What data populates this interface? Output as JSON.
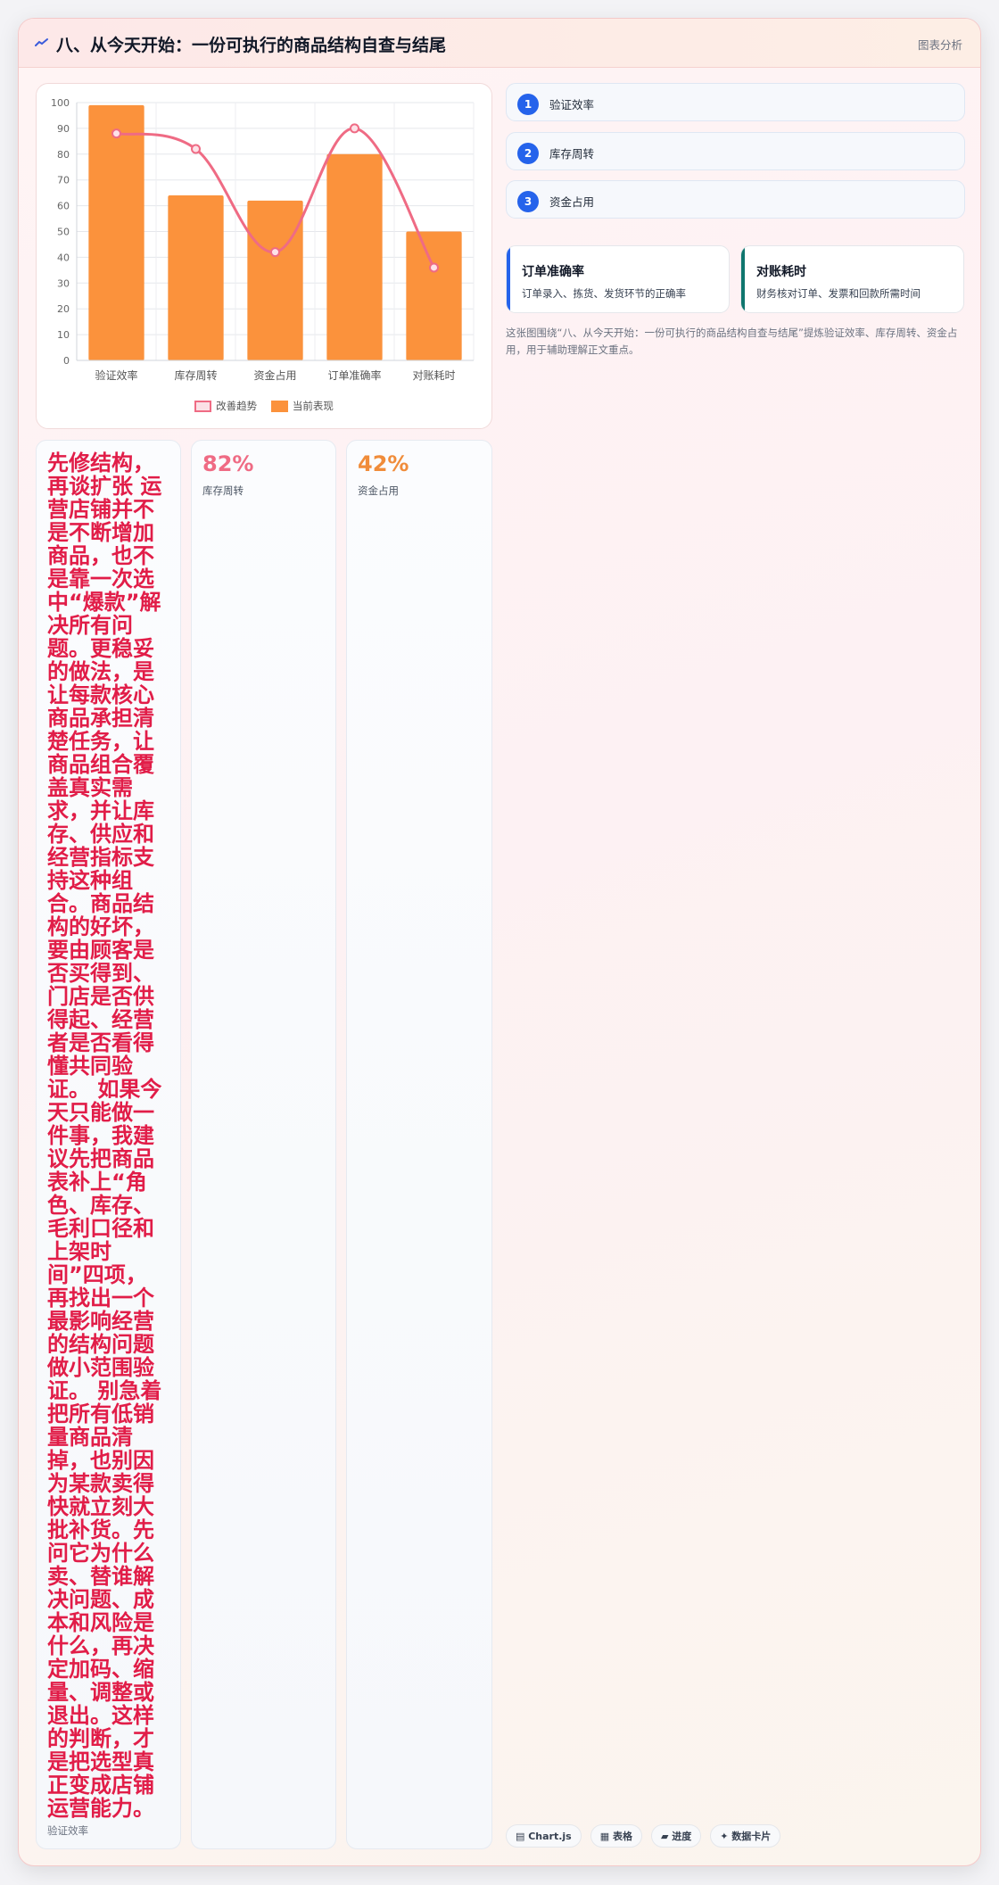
{
  "header": {
    "title": "八、从今天开始：一份可执行的商品结构自查与结尾",
    "tag": "图表分析"
  },
  "chart_data": {
    "type": "bar",
    "categories": [
      "验证效率",
      "库存周转",
      "资金占用",
      "订单准确率",
      "对账耗时"
    ],
    "series": [
      {
        "name": "改善趋势",
        "type": "line",
        "values": [
          88,
          82,
          42,
          90,
          36
        ],
        "color": "#ef6b84"
      },
      {
        "name": "当前表现",
        "type": "bar",
        "values": [
          99,
          64,
          62,
          80,
          50
        ],
        "color": "#fb923c"
      }
    ],
    "ylim": [
      0,
      100
    ],
    "yticks": [
      0,
      10,
      20,
      30,
      40,
      50,
      60,
      70,
      80,
      90,
      100
    ],
    "grid": true,
    "legend_position": "bottom"
  },
  "steps": [
    {
      "num": "1",
      "label": "验证效率"
    },
    {
      "num": "2",
      "label": "库存周转"
    },
    {
      "num": "3",
      "label": "资金占用"
    }
  ],
  "metrics": [
    {
      "title": "订单准确率",
      "desc": "订单录入、拣货、发货环节的正确率",
      "color": "#2563eb"
    },
    {
      "title": "对账耗时",
      "desc": "财务核对订单、发票和回款所需时间",
      "color": "#0f766e"
    }
  ],
  "caption": "这张图围绕“八、从今天开始：一份可执行的商品结构自查与结尾”提炼验证效率、库存周转、资金占用，用于辅助理解正文重点。",
  "columns": {
    "text": "先修结构，再谈扩张 运营店铺并不是不断增加商品，也不是靠一次选中“爆款”解决所有问题。更稳妥的做法，是让每款核心商品承担清楚任务，让商品组合覆盖真实需求，并让库存、供应和经营指标支持这种组合。商品结构的好坏，要由顾客是否买得到、门店是否供得起、经营者是否看得懂共同验证。 如果今天只能做一件事，我建议先把商品表补上“角色、库存、毛利口径和上架时间”四项，再找出一个最影响经营的结构问题做小范围验证。 别急着把所有低销量商品清掉，也别因为某款卖得快就立刻大批补货。先问它为什么卖、替谁解决问题、成本和风险是什么，再决定加码、缩量、调整或退出。这样的判断，才是把选型真正变成店铺运营能力。",
    "text_label": "验证效率",
    "kpis": [
      {
        "value": "82%",
        "label": "库存周转",
        "color": "#ef6b84"
      },
      {
        "value": "42%",
        "label": "资金占用",
        "color": "#f08c3a"
      }
    ]
  },
  "chips": [
    "▤ Chart.js",
    "▦ 表格",
    "▰ 进度",
    "✦ 数据卡片"
  ]
}
